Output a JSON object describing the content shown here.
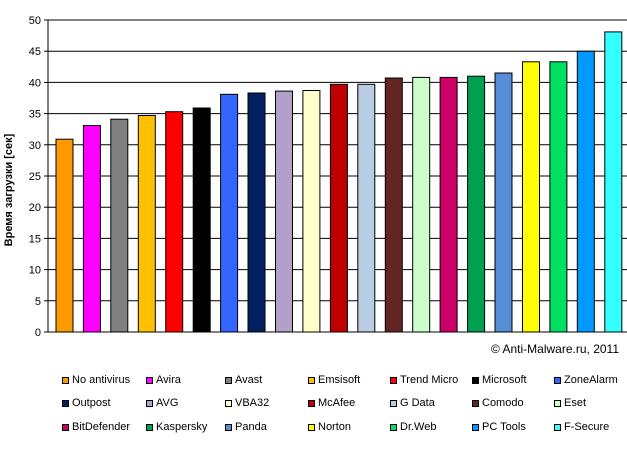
{
  "chart_data": {
    "type": "bar",
    "title": "",
    "xlabel": "",
    "ylabel": "Время загрузки [сек]",
    "ylim": [
      0,
      50
    ],
    "yticks": [
      0,
      5,
      10,
      15,
      20,
      25,
      30,
      35,
      40,
      45,
      50
    ],
    "grid": true,
    "legend_position": "bottom",
    "categories": [
      "No antivirus",
      "Avira",
      "Avast",
      "Emsisoft",
      "Trend Micro",
      "Microsoft",
      "ZoneAlarm",
      "Outpost",
      "AVG",
      "VBA32",
      "McAfee",
      "G Data",
      "Comodo",
      "Eset",
      "BitDefender",
      "Kaspersky",
      "Panda",
      "Norton",
      "Dr.Web",
      "PC Tools",
      "F-Secure"
    ],
    "values": [
      30.9,
      33.1,
      34.1,
      34.7,
      35.3,
      35.9,
      38.1,
      38.3,
      38.6,
      38.7,
      39.7,
      39.7,
      40.7,
      40.8,
      40.8,
      41.0,
      41.5,
      43.3,
      43.3,
      45.0,
      48.1
    ],
    "colors": [
      "#ff9900",
      "#ff00ff",
      "#808080",
      "#ffc000",
      "#ff0000",
      "#000000",
      "#3366ff",
      "#002060",
      "#b1a0c7",
      "#ffffcc",
      "#c00000",
      "#b8cce4",
      "#632523",
      "#ccffcc",
      "#cc0066",
      "#00a050",
      "#558ed5",
      "#ffff00",
      "#00e060",
      "#0099ff",
      "#33ffff"
    ]
  },
  "credit": "© Anti-Malware.ru,  2011"
}
